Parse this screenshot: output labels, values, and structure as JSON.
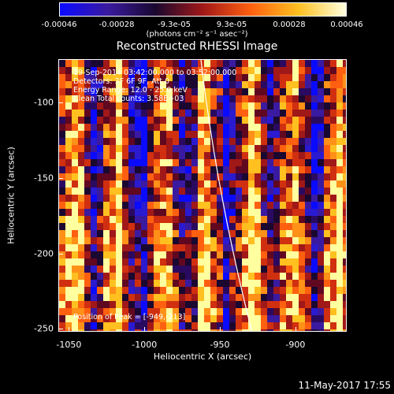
{
  "colorbar": {
    "ticks": [
      "-0.00046",
      "-0.00028",
      "-9.3e-05",
      "9.3e-05",
      "0.00028",
      "0.00046"
    ],
    "unit": "(photons cm⁻² s⁻¹ asec⁻²)",
    "colors": [
      "#0a0aff",
      "#3a1aa0",
      "#1a0830",
      "#a01818",
      "#ff6010",
      "#ffc020",
      "#ffffe0"
    ]
  },
  "title": "Reconstructed RHESSI Image",
  "info": {
    "line1": "19-Sep-2014 03:42:00.000 to 03:52:00.000",
    "line2": "Detectors: 3F 6F 9F, Att 0",
    "line3": "Energy Range: 12.0 - 25.0 keV",
    "line4": "Clean    Total counts: 3.58E+03",
    "peak": "Position of Peak = [-949,-213]"
  },
  "axes": {
    "xlabel": "Heliocentric X (arcsec)",
    "ylabel": "Heliocentric Y (arcsec)",
    "xticks": [
      "-1050",
      "-1000",
      "-950",
      "-900"
    ],
    "yticks": [
      "-100",
      "-150",
      "-200",
      "-250"
    ],
    "xlim": [
      -1057,
      -866
    ],
    "ylim": [
      -252,
      -71
    ]
  },
  "datestamp": "11-May-2017 17:55"
}
